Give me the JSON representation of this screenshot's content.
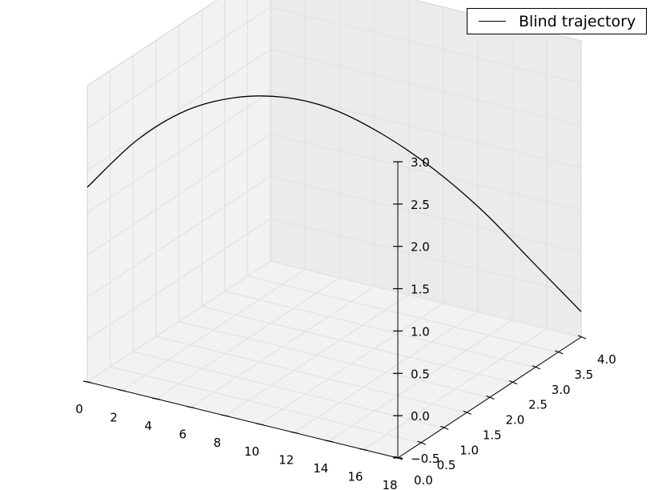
{
  "chart_data": {
    "type": "line",
    "projection": "3d",
    "grid": true,
    "legend_placement": "top-right",
    "xlim": [
      0,
      18
    ],
    "ylim": [
      0,
      4
    ],
    "zlim": [
      -0.5,
      3
    ],
    "x_ticks": [
      "0",
      "2",
      "4",
      "6",
      "8",
      "10",
      "12",
      "14",
      "16",
      "18"
    ],
    "y_ticks": [
      "0.0",
      "0.5",
      "1.0",
      "1.5",
      "2.0",
      "2.5",
      "3.0",
      "3.5",
      "4.0"
    ],
    "z_ticks": [
      "−0.5",
      "0.0",
      "0.5",
      "1.0",
      "1.5",
      "2.0",
      "2.5",
      "3.0"
    ],
    "series": [
      {
        "name": "Blind trajectory",
        "color": "#000000",
        "x": [
          0.0,
          1.8,
          3.6,
          5.4,
          7.2,
          9.0,
          10.8,
          12.6,
          14.4,
          16.2,
          18.0
        ],
        "y": [
          0.0,
          0.4,
          0.8,
          1.2,
          1.6,
          2.0,
          2.4,
          2.8,
          3.2,
          3.6,
          4.0
        ],
        "z": [
          1.8,
          2.3,
          2.6,
          2.7,
          2.65,
          2.45,
          2.1,
          1.65,
          1.1,
          0.45,
          -0.2
        ]
      }
    ]
  }
}
